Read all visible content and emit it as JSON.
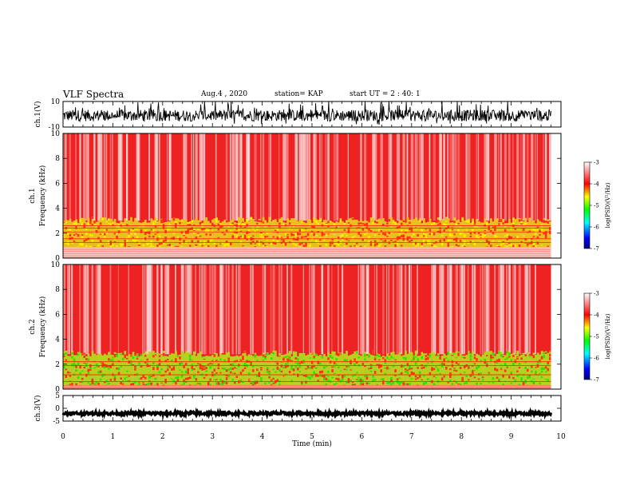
{
  "header": {
    "title": "VLF Spectra",
    "date": "Aug.4 , 2020",
    "station": "station= KAP",
    "start": "start UT = 2 : 40: 1"
  },
  "chart_data": [
    {
      "id": "ch1-waveform",
      "type": "line",
      "ylabel": "ch.1(V)",
      "ylim": [
        -10,
        10
      ],
      "yticks": [
        "10",
        "-10"
      ],
      "xlim": [
        0,
        10
      ],
      "data_end_min": 9.8,
      "series_color": "#000000",
      "description_of_values": "dense noisy waveform, mostly between -6 and 4 V, full-scale spikes"
    },
    {
      "id": "ch1-spectrogram",
      "type": "heatmap",
      "ylabel": "ch.1 Frequency (kHz)",
      "ylim": [
        0,
        10
      ],
      "yticks": [
        "0",
        "2",
        "4",
        "6",
        "8",
        "10"
      ],
      "xlim": [
        0,
        10
      ],
      "data_end_min": 9.8,
      "bands_khz": {
        "strong_low": [
          0.9,
          3.0
        ],
        "quiet_low": [
          0.0,
          0.9
        ]
      },
      "colorbar": {
        "label": "log(PSD)(V²/Hz)",
        "ticks": [
          "-3",
          "-4",
          "-5",
          "-6",
          "-7"
        ],
        "range": [
          -7,
          -3
        ],
        "colors": [
          "#000080",
          "#0000ff",
          "#00ffff",
          "#00ff00",
          "#ffff00",
          "#ff0000",
          "#ffffff"
        ]
      }
    },
    {
      "id": "ch2-spectrogram",
      "type": "heatmap",
      "ylabel": "ch.2 Frequency (kHz)",
      "ylim": [
        0,
        10
      ],
      "yticks": [
        "0",
        "2",
        "4",
        "6",
        "8",
        "10"
      ],
      "xlim": [
        0,
        10
      ],
      "data_end_min": 9.8,
      "bands_khz": {
        "strong_low": [
          0.3,
          2.8
        ],
        "quiet_low": [
          0.0,
          0.3
        ]
      },
      "colorbar": {
        "label": "log(PSD)(V²/Hz)",
        "ticks": [
          "-3",
          "-4",
          "-5",
          "-6",
          "-7"
        ],
        "range": [
          -7,
          -3
        ],
        "colors": [
          "#000080",
          "#0000ff",
          "#00ffff",
          "#00ff00",
          "#ffff00",
          "#ff0000",
          "#ffffff"
        ]
      }
    },
    {
      "id": "ch3-waveform",
      "type": "line",
      "ylabel": "ch.3(V)",
      "ylim": [
        -5,
        5
      ],
      "yticks": [
        "5",
        "0",
        "-5"
      ],
      "xlim": [
        0,
        10
      ],
      "data_end_min": 9.8,
      "baseline_v": -2.0,
      "series_color": "#000000"
    }
  ],
  "xaxis": {
    "label": "Time (min)",
    "ticks": [
      "0",
      "1",
      "2",
      "3",
      "4",
      "5",
      "6",
      "7",
      "8",
      "9",
      "10"
    ],
    "range": [
      0,
      10
    ]
  }
}
